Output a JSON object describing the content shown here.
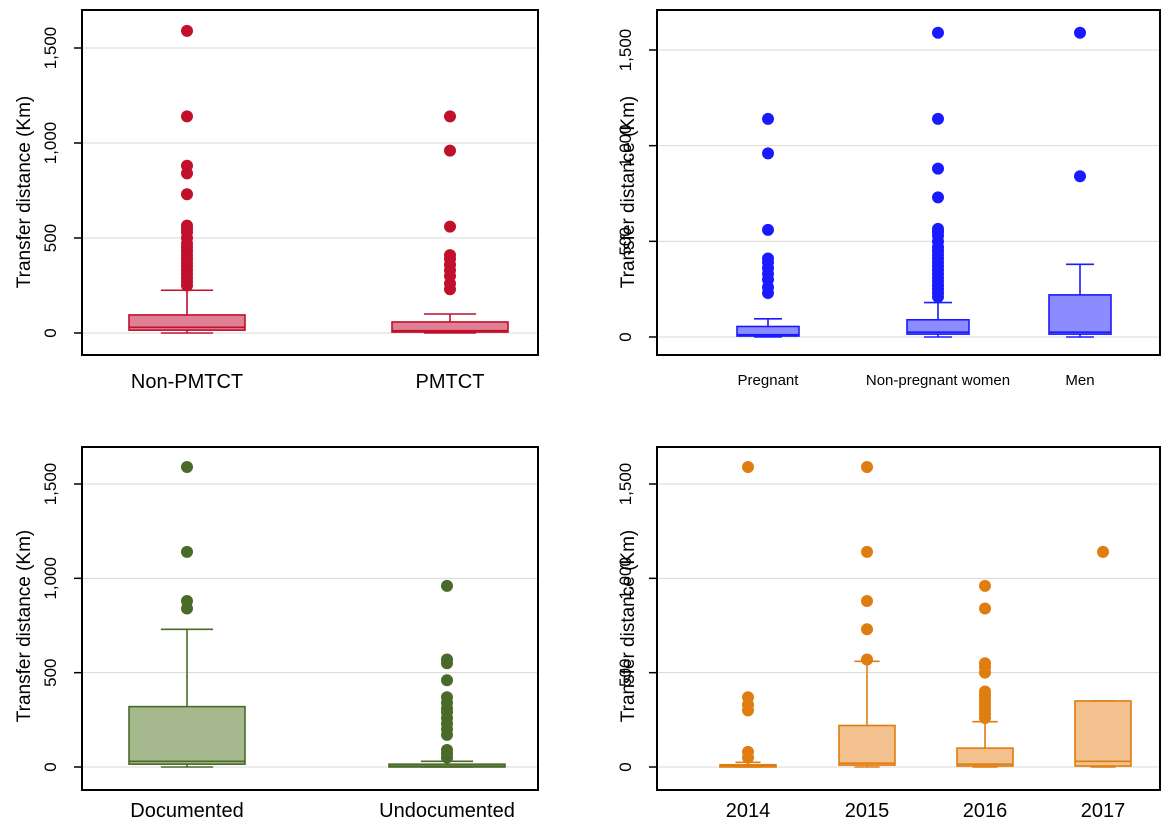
{
  "chart_data": [
    {
      "type": "box",
      "ylabel": "Transfer distance (Km)",
      "ylim": [
        0,
        1600
      ],
      "yticks": [
        0,
        500,
        1000,
        1500
      ],
      "ytick_labels": [
        "0",
        "500",
        "1,000",
        "1,500"
      ],
      "grid": true,
      "color": "#c0102c",
      "fill": "#e08095",
      "categories": [
        "Non-PMTCT",
        "PMTCT"
      ],
      "boxes": [
        {
          "q1": 15,
          "median": 30,
          "q3": 95,
          "whisker_low": 0,
          "whisker_high": 225,
          "outliers": [
            250,
            270,
            290,
            310,
            330,
            350,
            370,
            390,
            410,
            430,
            450,
            470,
            500,
            530,
            550,
            565,
            730,
            840,
            880,
            1140,
            1590
          ]
        },
        {
          "q1": 5,
          "median": 12,
          "q3": 58,
          "whisker_low": 0,
          "whisker_high": 100,
          "outliers": [
            230,
            260,
            300,
            330,
            360,
            390,
            410,
            560,
            960,
            1140
          ]
        }
      ]
    },
    {
      "type": "box",
      "ylabel": "Transfer distance (Km)",
      "ylim": [
        0,
        1600
      ],
      "yticks": [
        0,
        500,
        1000,
        1500
      ],
      "ytick_labels": [
        "0",
        "500",
        "1,000",
        "1,500"
      ],
      "grid": true,
      "color": "#1a1aff",
      "fill": "#8c8cff",
      "categories": [
        "Pregnant",
        "Non-pregnant women",
        "Men"
      ],
      "boxes": [
        {
          "q1": 5,
          "median": 12,
          "q3": 55,
          "whisker_low": 0,
          "whisker_high": 95,
          "outliers": [
            230,
            260,
            300,
            330,
            360,
            390,
            410,
            560,
            960,
            1140
          ]
        },
        {
          "q1": 15,
          "median": 25,
          "q3": 90,
          "whisker_low": 0,
          "whisker_high": 180,
          "outliers": [
            210,
            230,
            250,
            270,
            290,
            310,
            330,
            350,
            370,
            390,
            410,
            430,
            450,
            470,
            500,
            530,
            550,
            565,
            730,
            880,
            1140,
            1590
          ]
        },
        {
          "q1": 15,
          "median": 25,
          "q3": 220,
          "whisker_low": 0,
          "whisker_high": 380,
          "outliers": [
            840,
            1590
          ]
        }
      ]
    },
    {
      "type": "box",
      "ylabel": "Transfer distance (Km)",
      "ylim": [
        0,
        1600
      ],
      "yticks": [
        0,
        500,
        1000,
        1500
      ],
      "ytick_labels": [
        "0",
        "500",
        "1,000",
        "1,500"
      ],
      "grid": true,
      "color": "#4a6a2a",
      "fill": "#a6b98e",
      "categories": [
        "Documented",
        "Undocumented"
      ],
      "boxes": [
        {
          "q1": 15,
          "median": 30,
          "q3": 320,
          "whisker_low": 0,
          "whisker_high": 730,
          "outliers": [
            840,
            880,
            1140,
            1590
          ]
        },
        {
          "q1": 0,
          "median": 5,
          "q3": 15,
          "whisker_low": 0,
          "whisker_high": 30,
          "outliers": [
            50,
            70,
            90,
            170,
            200,
            230,
            260,
            290,
            310,
            340,
            370,
            460,
            550,
            570,
            960
          ]
        }
      ]
    },
    {
      "type": "box",
      "ylabel": "Transfer distance (Km)",
      "ylim": [
        0,
        1600
      ],
      "yticks": [
        0,
        500,
        1000,
        1500
      ],
      "ytick_labels": [
        "0",
        "500",
        "1,000",
        "1,500"
      ],
      "grid": true,
      "color": "#e07d10",
      "fill": "#f2c18e",
      "categories": [
        "2014",
        "2015",
        "2016",
        "2017"
      ],
      "boxes": [
        {
          "q1": 0,
          "median": 5,
          "q3": 12,
          "whisker_low": 0,
          "whisker_high": 25,
          "outliers": [
            50,
            80,
            300,
            330,
            370,
            1590
          ]
        },
        {
          "q1": 10,
          "median": 20,
          "q3": 220,
          "whisker_low": 0,
          "whisker_high": 560,
          "outliers": [
            570,
            730,
            880,
            1140,
            1590
          ]
        },
        {
          "q1": 5,
          "median": 15,
          "q3": 100,
          "whisker_low": 0,
          "whisker_high": 240,
          "outliers": [
            260,
            280,
            300,
            320,
            340,
            360,
            380,
            400,
            500,
            530,
            550,
            840,
            960
          ]
        },
        {
          "q1": 5,
          "median": 30,
          "q3": 350,
          "whisker_low": 0,
          "whisker_high": 350,
          "outliers": [
            1140
          ]
        }
      ]
    }
  ]
}
